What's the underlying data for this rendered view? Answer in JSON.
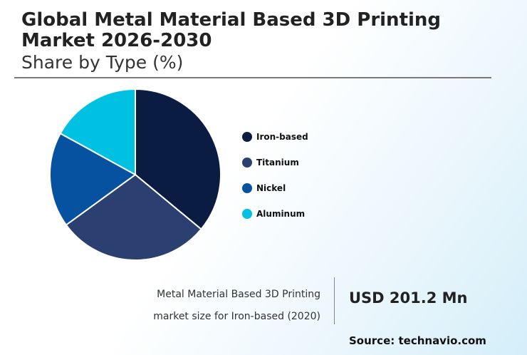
{
  "header": {
    "title": "Global Metal Material Based 3D Printing Market 2026-2030",
    "subtitle": "Share by Type (%)"
  },
  "chart_data": {
    "type": "pie",
    "categories": [
      "Iron-based",
      "Titanium",
      "Nickel",
      "Aluminum"
    ],
    "values": [
      36,
      29,
      18,
      17
    ],
    "colors": [
      "#0a1c42",
      "#2b3f70",
      "#0651a0",
      "#00c1e2"
    ],
    "legend_position": "right"
  },
  "stat": {
    "description_line1": "Metal Material Based 3D Printing",
    "description_line2": "market size for Iron-based (2020)",
    "value": "USD 201.2 Mn"
  },
  "source": "Source: technavio.com"
}
